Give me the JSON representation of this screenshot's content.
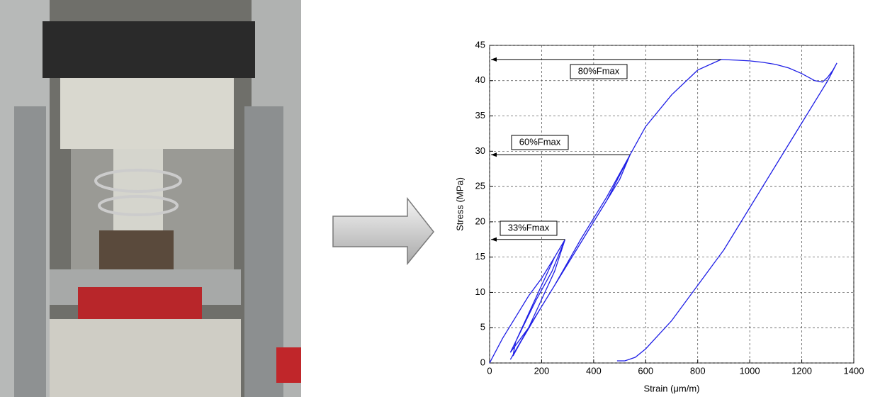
{
  "chart_data": {
    "type": "line",
    "xlabel": "Strain (μm/m)",
    "ylabel": "Stress (MPa)",
    "x": [
      0,
      50,
      100,
      150,
      200,
      250,
      290,
      250,
      200,
      150,
      100,
      90,
      150,
      200,
      250,
      290,
      240,
      180,
      120,
      80,
      150,
      250,
      350,
      450,
      540,
      500,
      400,
      300,
      200,
      120,
      80,
      150,
      250,
      350,
      450,
      540,
      600,
      700,
      800,
      890,
      950,
      1000,
      1050,
      1100,
      1150,
      1200,
      1250,
      1280,
      1300,
      1320,
      1335,
      1300,
      1200,
      1100,
      1000,
      900,
      800,
      700,
      600,
      560,
      520,
      490
    ],
    "values": [
      0,
      3.5,
      6.5,
      9.5,
      12,
      15,
      17.5,
      15,
      11,
      7,
      3,
      1,
      5,
      9,
      13,
      17.5,
      13,
      9,
      4.5,
      1.5,
      5,
      11,
      17,
      23,
      29.5,
      26,
      20,
      14,
      8,
      3,
      0.5,
      5,
      11,
      17.5,
      23.5,
      29.5,
      33.5,
      38,
      41.5,
      43,
      42.9,
      42.8,
      42.6,
      42.3,
      41.8,
      41,
      40,
      39.8,
      40.5,
      41.5,
      42.5,
      40,
      34,
      28,
      22,
      16,
      11,
      6,
      2,
      0.8,
      0.3,
      0.3
    ],
    "color": "#1f1fe6",
    "xlim": [
      0,
      1400
    ],
    "xticks": [
      0,
      200,
      400,
      600,
      800,
      1000,
      1200,
      1400
    ],
    "ylim": [
      0,
      45
    ],
    "yticks": [
      0,
      5,
      10,
      15,
      20,
      25,
      30,
      35,
      40,
      45
    ],
    "grid": true,
    "annotations": [
      {
        "text": "80%Fmax",
        "x": 890,
        "y": 43
      },
      {
        "text": "60%Fmax",
        "x": 540,
        "y": 29.5
      },
      {
        "text": "33%Fmax",
        "x": 290,
        "y": 17.5
      }
    ]
  }
}
